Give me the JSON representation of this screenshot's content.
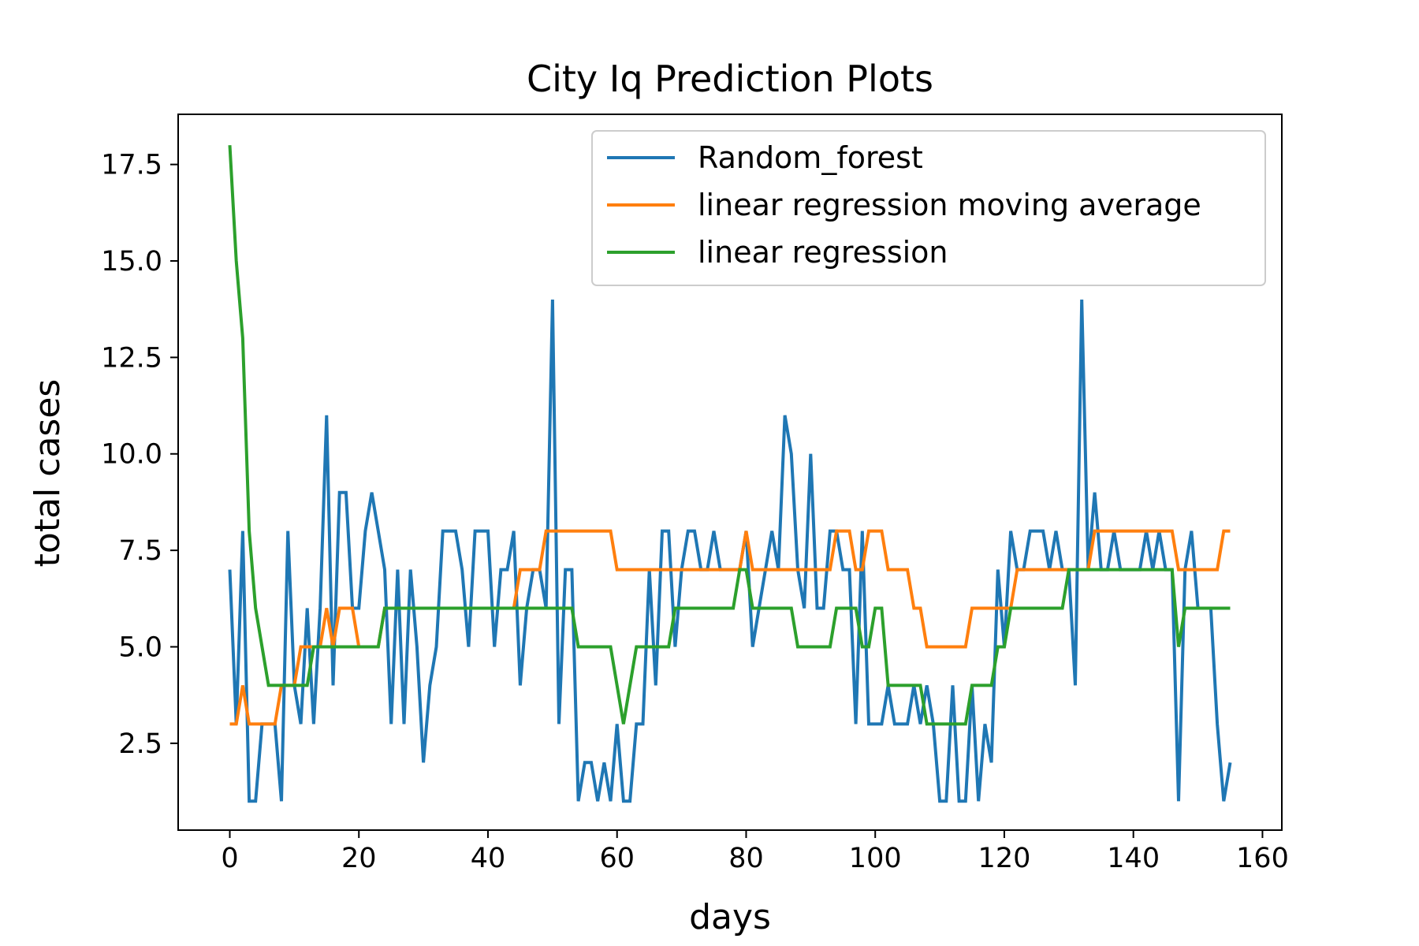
{
  "chart_data": {
    "type": "line",
    "title": "City Iq Prediction Plots",
    "xlabel": "days",
    "ylabel": "total cases",
    "xlim": [
      -8,
      163
    ],
    "ylim": [
      0.25,
      18.8
    ],
    "xticks": [
      0,
      20,
      40,
      60,
      80,
      100,
      120,
      140,
      160
    ],
    "xtick_labels": [
      "0",
      "20",
      "40",
      "60",
      "80",
      "100",
      "120",
      "140",
      "160"
    ],
    "yticks": [
      2.5,
      5.0,
      7.5,
      10.0,
      12.5,
      15.0,
      17.5
    ],
    "ytick_labels": [
      "2.5",
      "5.0",
      "7.5",
      "10.0",
      "12.5",
      "15.0",
      "17.5"
    ],
    "grid": false,
    "legend_position": "upper right",
    "series": [
      {
        "name": "Random_forest",
        "color": "#1f77b4",
        "values": [
          7,
          3,
          8,
          1,
          1,
          3,
          3,
          3,
          1,
          8,
          4,
          3,
          6,
          3,
          6,
          11,
          4,
          9,
          9,
          6,
          6,
          8,
          9,
          8,
          7,
          3,
          7,
          3,
          7,
          5,
          2,
          4,
          5,
          8,
          8,
          8,
          7,
          5,
          8,
          8,
          8,
          5,
          7,
          7,
          8,
          4,
          6,
          7,
          7,
          6,
          14,
          3,
          7,
          7,
          1,
          2,
          2,
          1,
          2,
          1,
          3,
          1,
          1,
          3,
          3,
          7,
          4,
          8,
          8,
          5,
          7,
          8,
          8,
          7,
          7,
          8,
          7,
          7,
          7,
          7,
          8,
          5,
          6,
          7,
          8,
          7,
          11,
          10,
          7,
          6,
          10,
          6,
          6,
          8,
          8,
          7,
          7,
          3,
          8,
          3,
          3,
          3,
          4,
          3,
          3,
          3,
          4,
          3,
          4,
          3,
          1,
          1,
          4,
          1,
          1,
          4,
          1,
          3,
          2,
          7,
          5,
          8,
          7,
          7,
          8,
          8,
          8,
          7,
          8,
          7,
          7,
          4,
          14,
          7,
          9,
          7,
          7,
          8,
          7,
          7,
          7,
          7,
          8,
          7,
          8,
          7,
          7,
          1,
          7,
          8,
          6,
          6,
          6,
          3,
          1,
          2
        ]
      },
      {
        "name": "linear regression moving average",
        "color": "#ff7f0e",
        "values": [
          3,
          3,
          4,
          3,
          3,
          3,
          3,
          3,
          4,
          4,
          4,
          5,
          5,
          5,
          5,
          6,
          5,
          6,
          6,
          6,
          5,
          5,
          5,
          5,
          6,
          6,
          6,
          6,
          6,
          6,
          6,
          6,
          6,
          6,
          6,
          6,
          6,
          6,
          6,
          6,
          6,
          6,
          6,
          6,
          6,
          7,
          7,
          7,
          7,
          8,
          8,
          8,
          8,
          8,
          8,
          8,
          8,
          8,
          8,
          8,
          7,
          7,
          7,
          7,
          7,
          7,
          7,
          7,
          7,
          7,
          7,
          7,
          7,
          7,
          7,
          7,
          7,
          7,
          7,
          7,
          8,
          7,
          7,
          7,
          7,
          7,
          7,
          7,
          7,
          7,
          7,
          7,
          7,
          7,
          8,
          8,
          8,
          7,
          7,
          8,
          8,
          8,
          7,
          7,
          7,
          7,
          6,
          6,
          5,
          5,
          5,
          5,
          5,
          5,
          5,
          6,
          6,
          6,
          6,
          6,
          6,
          6,
          7,
          7,
          7,
          7,
          7,
          7,
          7,
          7,
          7,
          7,
          7,
          7,
          8,
          8,
          8,
          8,
          8,
          8,
          8,
          8,
          8,
          8,
          8,
          8,
          8,
          7,
          7,
          7,
          7,
          7,
          7,
          7,
          8,
          8
        ]
      },
      {
        "name": "linear regression",
        "color": "#2ca02c",
        "values": [
          18,
          15,
          13,
          8,
          6,
          5,
          4,
          4,
          4,
          4,
          4,
          4,
          4,
          5,
          5,
          5,
          5,
          5,
          5,
          5,
          5,
          5,
          5,
          5,
          6,
          6,
          6,
          6,
          6,
          6,
          6,
          6,
          6,
          6,
          6,
          6,
          6,
          6,
          6,
          6,
          6,
          6,
          6,
          6,
          6,
          6,
          6,
          6,
          6,
          6,
          6,
          6,
          6,
          6,
          5,
          5,
          5,
          5,
          5,
          5,
          4,
          3,
          4,
          5,
          5,
          5,
          5,
          5,
          5,
          6,
          6,
          6,
          6,
          6,
          6,
          6,
          6,
          6,
          6,
          7,
          7,
          6,
          6,
          6,
          6,
          6,
          6,
          6,
          5,
          5,
          5,
          5,
          5,
          5,
          6,
          6,
          6,
          6,
          5,
          5,
          6,
          6,
          4,
          4,
          4,
          4,
          4,
          4,
          3,
          3,
          3,
          3,
          3,
          3,
          3,
          4,
          4,
          4,
          4,
          5,
          5,
          6,
          6,
          6,
          6,
          6,
          6,
          6,
          6,
          6,
          7,
          7,
          7,
          7,
          7,
          7,
          7,
          7,
          7,
          7,
          7,
          7,
          7,
          7,
          7,
          7,
          7,
          5,
          6,
          6,
          6,
          6,
          6,
          6,
          6,
          6
        ]
      }
    ]
  }
}
